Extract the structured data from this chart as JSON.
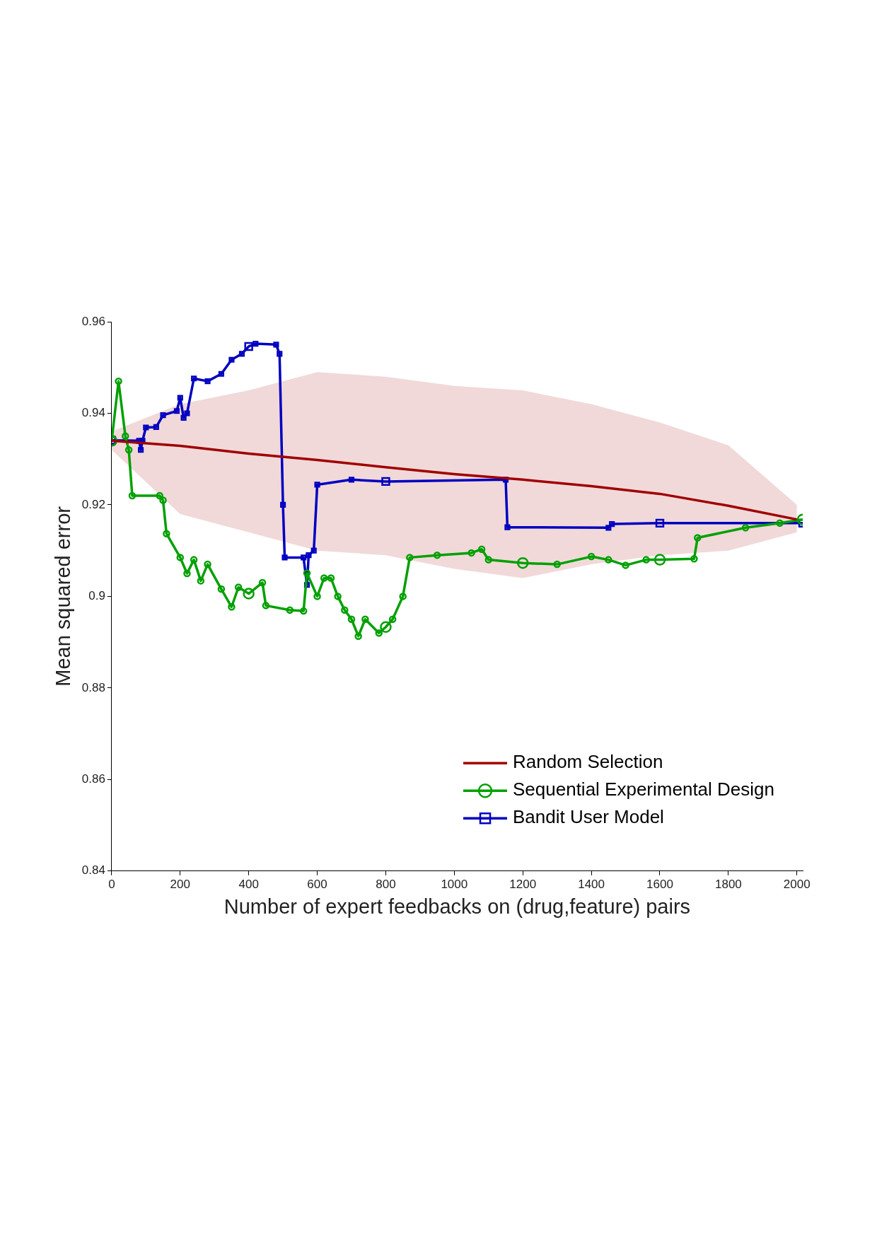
{
  "chart_data": {
    "type": "line",
    "xlabel": "Number of expert feedbacks on (drug,feature) pairs",
    "ylabel": "Mean squared error",
    "xlim": [
      0,
      2017
    ],
    "ylim": [
      0.84,
      0.96
    ],
    "xticks": [
      0,
      200,
      400,
      600,
      800,
      1000,
      1200,
      1400,
      1600,
      1800,
      2000
    ],
    "yticks": [
      0.84,
      0.86,
      0.88,
      0.9,
      0.92,
      0.94,
      0.96
    ],
    "grid": false,
    "legend": "bottom right",
    "line_style": "solid",
    "series": [
      {
        "name": "Random Selection",
        "color": "#a00000",
        "marker": "none",
        "x": [
          0,
          200,
          400,
          600,
          800,
          1000,
          1200,
          1400,
          1600,
          1800,
          2000
        ],
        "values": [
          0.934,
          0.9329,
          0.9312,
          0.9298,
          0.9282,
          0.9267,
          0.9255,
          0.9241,
          0.9224,
          0.9198,
          0.9168
        ],
        "lower": [
          0.932,
          0.918,
          0.914,
          0.91,
          0.909,
          0.906,
          0.904,
          0.907,
          0.909,
          0.91,
          0.914
        ],
        "upper": [
          0.936,
          0.942,
          0.945,
          0.949,
          0.948,
          0.946,
          0.945,
          0.942,
          0.938,
          0.933,
          0.92
        ]
      },
      {
        "name": "Sequential Experimental Design",
        "color": "#00a000",
        "marker": "circle",
        "x": [
          0,
          20,
          40,
          50,
          60,
          140,
          150,
          160,
          200,
          220,
          240,
          260,
          280,
          320,
          350,
          370,
          400,
          440,
          450,
          520,
          560,
          570,
          600,
          620,
          640,
          660,
          680,
          700,
          720,
          740,
          780,
          800,
          820,
          850,
          870,
          950,
          1050,
          1080,
          1100,
          1200,
          1300,
          1400,
          1450,
          1500,
          1560,
          1600,
          1700,
          1710,
          1850,
          1950,
          2017
        ],
        "values": [
          0.934,
          0.947,
          0.935,
          0.932,
          0.922,
          0.922,
          0.921,
          0.9137,
          0.9085,
          0.905,
          0.908,
          0.9034,
          0.907,
          0.9016,
          0.8977,
          0.902,
          0.9006,
          0.903,
          0.898,
          0.897,
          0.8968,
          0.9051,
          0.9,
          0.904,
          0.904,
          0.9,
          0.897,
          0.895,
          0.8913,
          0.895,
          0.892,
          0.8933,
          0.895,
          0.9,
          0.9085,
          0.909,
          0.9095,
          0.9103,
          0.908,
          0.9073,
          0.907,
          0.9087,
          0.908,
          0.9068,
          0.908,
          0.908,
          0.9082,
          0.9128,
          0.915,
          0.916,
          0.9168
        ]
      },
      {
        "name": "Bandit User Model",
        "color": "#0000c0",
        "marker": "square",
        "x": [
          0,
          80,
          85,
          90,
          100,
          130,
          150,
          190,
          200,
          210,
          220,
          240,
          280,
          320,
          350,
          380,
          400,
          420,
          480,
          490,
          500,
          505,
          560,
          570,
          575,
          590,
          600,
          700,
          800,
          1150,
          1155,
          1450,
          1460,
          1600,
          2017
        ],
        "values": [
          0.9341,
          0.934,
          0.932,
          0.934,
          0.9369,
          0.937,
          0.9396,
          0.9405,
          0.9434,
          0.939,
          0.94,
          0.9476,
          0.947,
          0.9486,
          0.9517,
          0.953,
          0.9546,
          0.9552,
          0.955,
          0.953,
          0.92,
          0.9085,
          0.9085,
          0.9025,
          0.909,
          0.91,
          0.9244,
          0.9255,
          0.9251,
          0.9255,
          0.9151,
          0.915,
          0.9158,
          0.916,
          0.916
        ]
      }
    ]
  }
}
